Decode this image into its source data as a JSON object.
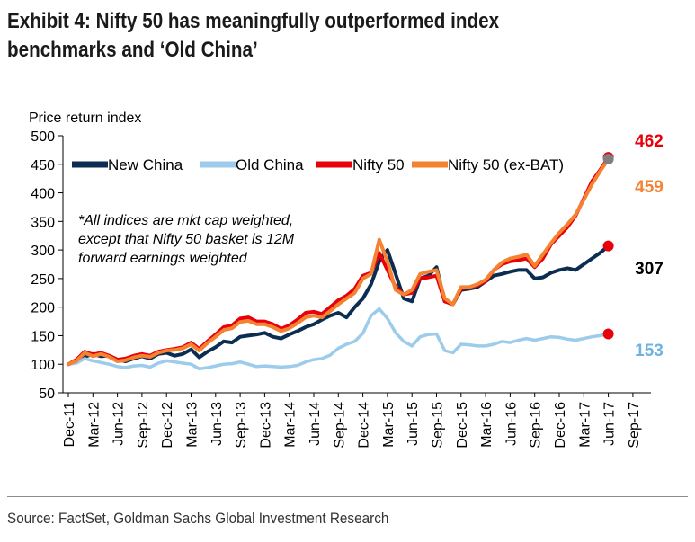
{
  "title": {
    "line1": "Exhibit 4: Nifty 50 has meaningfully outperformed index",
    "line2": "benchmarks and ‘Old China’"
  },
  "source": "Source: FactSet, Goldman Sachs Global Investment Research",
  "chart_data": {
    "type": "line",
    "title": "Exhibit 4: Nifty 50 has meaningfully outperformed index benchmarks and ‘Old China’",
    "ylabel": "Price return index",
    "xlabel": "",
    "ylim": [
      50,
      500
    ],
    "yticks": [
      50,
      100,
      150,
      200,
      250,
      300,
      350,
      400,
      450,
      500
    ],
    "x_tick_labels": [
      "Dec-11",
      "Mar-12",
      "Jun-12",
      "Sep-12",
      "Dec-12",
      "Mar-13",
      "Jun-13",
      "Sep-13",
      "Dec-13",
      "Mar-14",
      "Jun-14",
      "Sep-14",
      "Dec-14",
      "Mar-15",
      "Jun-15",
      "Sep-15",
      "Dec-15",
      "Mar-16",
      "Jun-16",
      "Sep-16",
      "Dec-16",
      "Mar-17",
      "Jun-17",
      "Sep-17"
    ],
    "x_start": "Dec-11",
    "x_end": "Oct-17",
    "grid": false,
    "legend_position": "top",
    "note": [
      "*All indices are mkt cap weighted,",
      "except that Nifty 50 basket is 12M",
      "forward earnings weighted"
    ],
    "series": [
      {
        "name": "New China",
        "color": "#0c2d52",
        "end_label": "307",
        "values": [
          100,
          104,
          113,
          118,
          114,
          115,
          108,
          105,
          110,
          114,
          110,
          118,
          120,
          115,
          118,
          126,
          112,
          122,
          130,
          140,
          138,
          148,
          150,
          152,
          155,
          148,
          145,
          152,
          158,
          165,
          170,
          178,
          185,
          190,
          182,
          200,
          215,
          240,
          280,
          300,
          258,
          215,
          210,
          250,
          255,
          270,
          210,
          205,
          230,
          232,
          235,
          245,
          255,
          258,
          262,
          265,
          265,
          250,
          252,
          260,
          265,
          268,
          265,
          275,
          285,
          295,
          307
        ]
      },
      {
        "name": "Old China",
        "color": "#9dcbeb",
        "end_label": "153",
        "values": [
          100,
          102,
          110,
          106,
          103,
          100,
          96,
          94,
          97,
          98,
          95,
          102,
          106,
          104,
          102,
          100,
          92,
          94,
          97,
          100,
          101,
          104,
          100,
          96,
          97,
          96,
          95,
          96,
          98,
          104,
          108,
          110,
          116,
          128,
          135,
          140,
          154,
          185,
          197,
          180,
          155,
          140,
          132,
          148,
          152,
          153,
          124,
          120,
          135,
          134,
          132,
          132,
          135,
          140,
          138,
          142,
          145,
          142,
          145,
          148,
          147,
          144,
          142,
          145,
          148,
          150,
          153
        ]
      },
      {
        "name": "Nifty 50",
        "color": "#e8000b",
        "end_label": "462",
        "values": [
          100,
          108,
          122,
          117,
          120,
          115,
          108,
          110,
          115,
          118,
          115,
          122,
          125,
          127,
          130,
          138,
          127,
          140,
          152,
          165,
          168,
          180,
          182,
          175,
          175,
          170,
          162,
          168,
          178,
          190,
          192,
          188,
          200,
          212,
          220,
          232,
          255,
          260,
          295,
          265,
          235,
          222,
          225,
          250,
          252,
          255,
          210,
          205,
          232,
          235,
          238,
          245,
          265,
          275,
          280,
          282,
          285,
          270,
          285,
          310,
          325,
          340,
          360,
          390,
          420,
          440,
          462
        ]
      },
      {
        "name": "Nifty 50 (ex-BAT)",
        "color": "#f58231",
        "end_label": "459",
        "values": [
          100,
          106,
          120,
          114,
          118,
          113,
          105,
          107,
          112,
          115,
          113,
          120,
          124,
          125,
          128,
          135,
          124,
          137,
          148,
          160,
          163,
          174,
          176,
          170,
          170,
          165,
          158,
          163,
          172,
          182,
          185,
          182,
          193,
          205,
          215,
          225,
          250,
          258,
          318,
          280,
          230,
          222,
          230,
          258,
          262,
          265,
          215,
          205,
          235,
          235,
          240,
          248,
          265,
          278,
          285,
          288,
          292,
          272,
          292,
          312,
          330,
          345,
          362,
          388,
          415,
          438,
          459
        ]
      }
    ]
  }
}
